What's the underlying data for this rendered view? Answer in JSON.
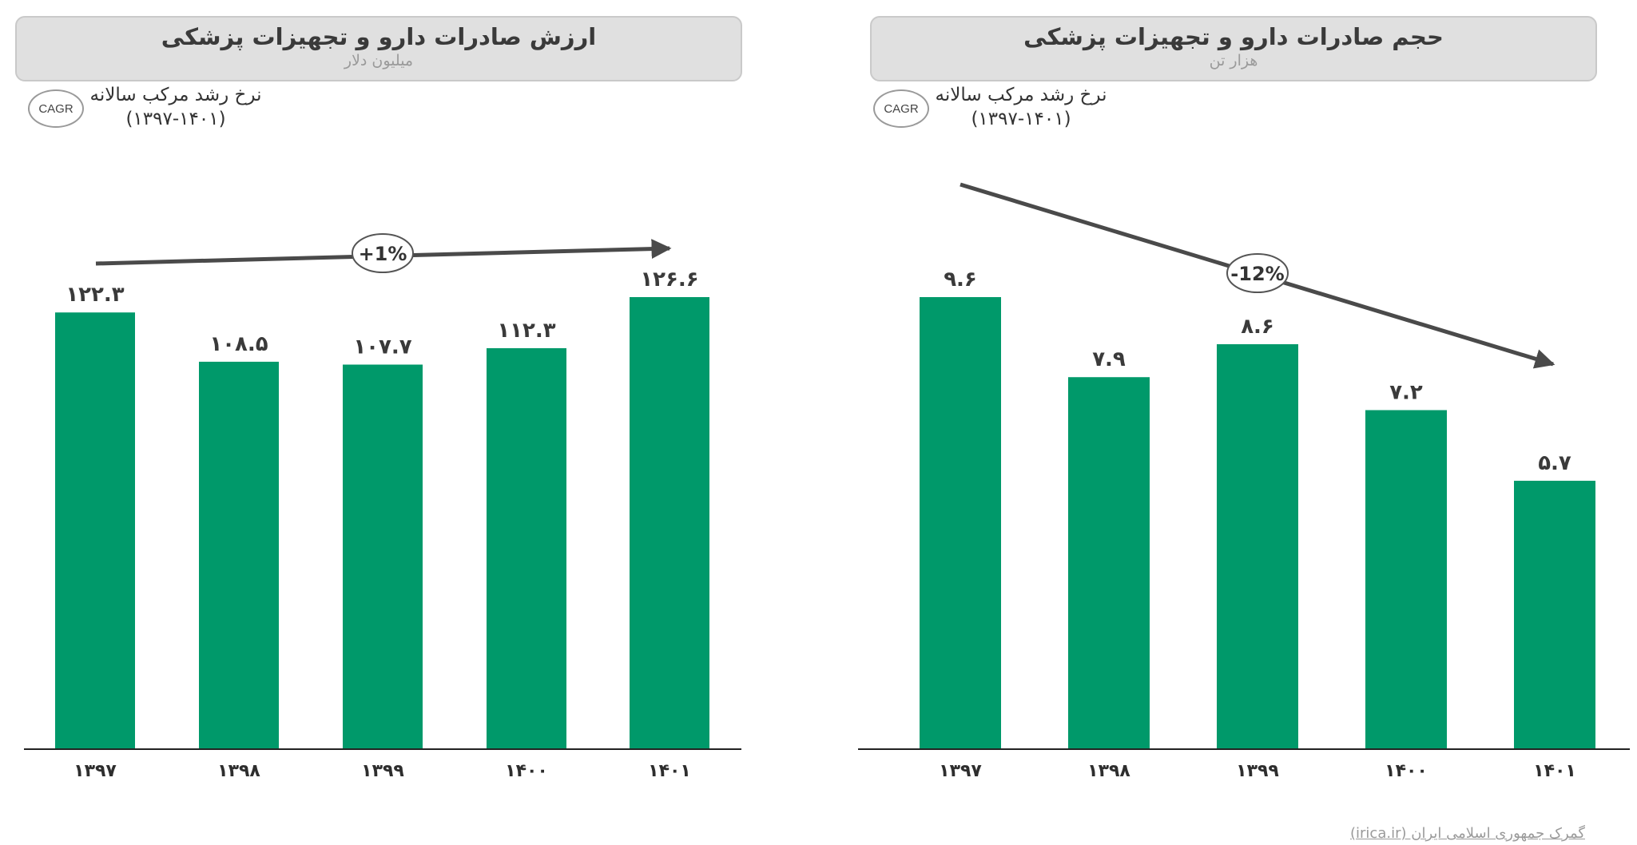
{
  "chart_data": [
    {
      "type": "bar",
      "title": "ارزش صادرات دارو و تجهیزات پزشکی",
      "subtitle": "میلیون دلار",
      "categories": [
        "۱۳۹۷",
        "۱۳۹۸",
        "۱۳۹۹",
        "۱۴۰۰",
        "۱۴۰۱"
      ],
      "values": [
        122.3,
        108.5,
        107.7,
        112.3,
        126.6
      ],
      "value_labels": [
        "۱۲۲.۳",
        "۱۰۸.۵",
        "۱۰۷.۷",
        "۱۱۲.۳",
        "۱۲۶.۶"
      ],
      "ylim": [
        0,
        126.6
      ],
      "bar_color": "#00996a",
      "cagr_badge": "CAGR",
      "cagr_title": "نرخ رشد مرکب سالانه",
      "cagr_period": "(۱۳۹۷-۱۴۰۱)",
      "cagr_value": "+1%",
      "grid": false
    },
    {
      "type": "bar",
      "title": "حجم صادرات دارو و تجهیزات پزشکی",
      "subtitle": "هزار تن",
      "categories": [
        "۱۳۹۷",
        "۱۳۹۸",
        "۱۳۹۹",
        "۱۴۰۰",
        "۱۴۰۱"
      ],
      "values": [
        9.6,
        7.9,
        8.6,
        7.2,
        5.7
      ],
      "value_labels": [
        "۹.۶",
        "۷.۹",
        "۸.۶",
        "۷.۲",
        "۵.۷"
      ],
      "ylim": [
        0,
        9.6
      ],
      "bar_color": "#00996a",
      "cagr_badge": "CAGR",
      "cagr_title": "نرخ رشد مرکب سالانه",
      "cagr_period": "(۱۳۹۷-۱۴۰۱)",
      "cagr_value": "-12%",
      "grid": false
    }
  ],
  "source": "گمرک جمهوری اسلامی ایران (irica.ir)"
}
